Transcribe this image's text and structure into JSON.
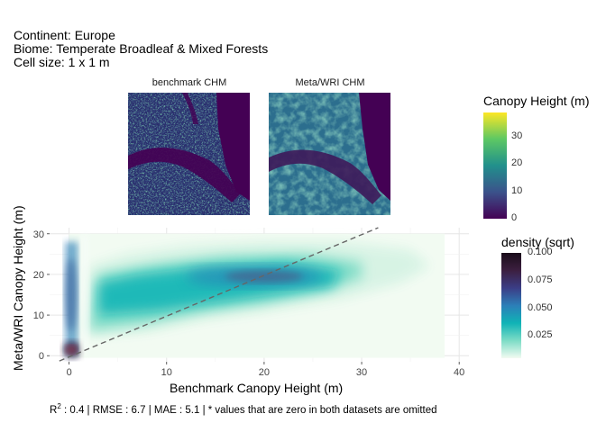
{
  "header": {
    "line1": "Continent: Europe",
    "line2": "Biome: Temperate Broadleaf & Mixed Forests",
    "line3": "Cell size: 1 x 1 m"
  },
  "maps": {
    "left_title": "benchmark CHM",
    "right_title": "Meta/WRI CHM"
  },
  "canopy_legend": {
    "title": "Canopy Height (m)",
    "ticks": [
      "0",
      "10",
      "20",
      "30"
    ],
    "colors": [
      "#440154",
      "#3b528b",
      "#21908c",
      "#5dc863",
      "#fde725"
    ]
  },
  "density_legend": {
    "title": "density (sqrt)",
    "ticks": [
      "0.025",
      "0.050",
      "0.075",
      "0.100"
    ],
    "colors": [
      "#f2fbf2",
      "#7ddcc6",
      "#0fb3b6",
      "#2c7fb8",
      "#3b3d86",
      "#3c1f40",
      "#1a0d1a"
    ]
  },
  "footer": {
    "r_label": "R",
    "r_exp": "2",
    "text": " :  0.4  |  RMSE :  6.7  |  MAE :  5.1  |  * values that are zero in both datasets are omitted"
  },
  "chart_data": {
    "type": "heatmap",
    "description_note": "",
    "xlabel": "Benchmark Canopy Height (m)",
    "ylabel": "Meta/WRI Canopy Height (m)",
    "xlim": [
      -2,
      41
    ],
    "ylim": [
      -1.5,
      31.5
    ],
    "x_ticks": [
      0,
      10,
      20,
      30,
      40
    ],
    "y_ticks": [
      0,
      10,
      20,
      30
    ],
    "grid": true,
    "reference_line": "y = x (dashed)",
    "density_ridge": [
      [
        0,
        2
      ],
      [
        5,
        12
      ],
      [
        10,
        15
      ],
      [
        15,
        18
      ],
      [
        20,
        19
      ],
      [
        25,
        20
      ],
      [
        30,
        18
      ]
    ]
  }
}
